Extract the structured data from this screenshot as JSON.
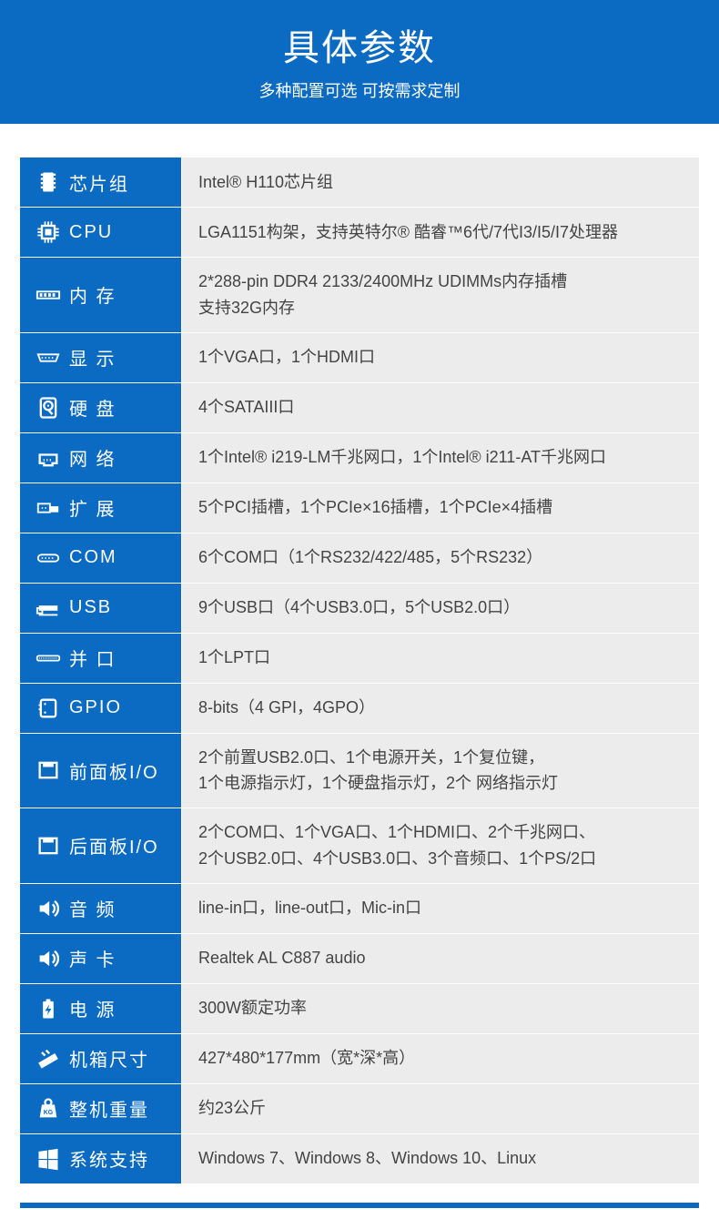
{
  "colors": {
    "brand": "#0b6bc3",
    "value_bg": "#ececec",
    "value_text": "#444444",
    "page_bg": "#ffffff"
  },
  "header": {
    "title": "具体参数",
    "subtitle": "多种配置可选 可按需求定制"
  },
  "rows": [
    {
      "icon": "chip-icon",
      "label": "芯片组",
      "value": "Intel® H110芯片组"
    },
    {
      "icon": "cpu-icon",
      "label": "CPU",
      "value": "LGA1151构架，支持英特尔® 酷睿™6代/7代I3/I5/I7处理器"
    },
    {
      "icon": "ram-icon",
      "label": "内 存",
      "value": "2*288-pin DDR4 2133/2400MHz UDIMMs内存插槽\n支持32G内存"
    },
    {
      "icon": "vga-icon",
      "label": "显 示",
      "value": "1个VGA口，1个HDMI口"
    },
    {
      "icon": "hdd-icon",
      "label": "硬 盘",
      "value": "4个SATAIII口"
    },
    {
      "icon": "lan-icon",
      "label": "网 络",
      "value": "1个Intel® i219-LM千兆网口，1个Intel® i211-AT千兆网口"
    },
    {
      "icon": "expand-icon",
      "label": "扩 展",
      "value": "5个PCI插槽，1个PCIe×16插槽，1个PCIe×4插槽"
    },
    {
      "icon": "com-icon",
      "label": "COM",
      "value": "6个COM口（1个RS232/422/485，5个RS232）"
    },
    {
      "icon": "usb-icon",
      "label": "USB",
      "value": "9个USB口（4个USB3.0口，5个USB2.0口）"
    },
    {
      "icon": "lpt-icon",
      "label": "并 口",
      "value": "1个LPT口"
    },
    {
      "icon": "gpio-icon",
      "label": "GPIO",
      "value": "8-bits（4 GPI，4GPO）"
    },
    {
      "icon": "panel-icon",
      "label": "前面板I/O",
      "value": "2个前置USB2.0口、1个电源开关，1个复位键，\n1个电源指示灯，1个硬盘指示灯，2个 网络指示灯"
    },
    {
      "icon": "panel-icon",
      "label": "后面板I/O",
      "value": "2个COM口、1个VGA口、1个HDMI口、2个千兆网口、\n2个USB2.0口、4个USB3.0口、3个音频口、1个PS/2口"
    },
    {
      "icon": "speaker-icon",
      "label": "音 频",
      "value": "line-in口，line-out口，Mic-in口"
    },
    {
      "icon": "speaker-icon",
      "label": "声 卡",
      "value": "Realtek AL C887 audio"
    },
    {
      "icon": "battery-icon",
      "label": "电 源",
      "value": "300W额定功率"
    },
    {
      "icon": "ruler-icon",
      "label": "机箱尺寸",
      "value": "427*480*177mm（宽*深*高）"
    },
    {
      "icon": "weight-icon",
      "label": "整机重量",
      "value": "约23公斤"
    },
    {
      "icon": "windows-icon",
      "label": "系统支持",
      "value": "Windows 7、Windows 8、Windows 10、Linux"
    }
  ]
}
